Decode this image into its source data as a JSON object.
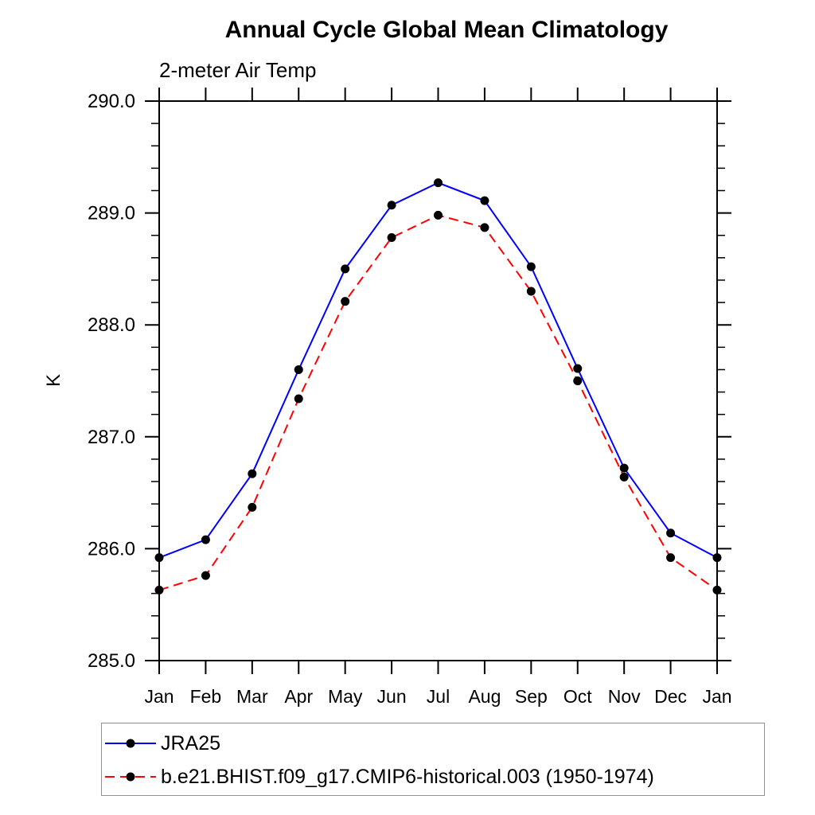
{
  "chart_data": {
    "type": "line",
    "title": "Annual Cycle Global Mean Climatology",
    "subtitle": "2-meter Air Temp",
    "ylabel": "K",
    "categories": [
      "Jan",
      "Feb",
      "Mar",
      "Apr",
      "May",
      "Jun",
      "Jul",
      "Aug",
      "Sep",
      "Oct",
      "Nov",
      "Dec",
      "Jan"
    ],
    "ylim": [
      285.0,
      290.0
    ],
    "ytick_major_interval": 1.0,
    "ytick_minor_interval": 0.2,
    "ytick_labels": [
      "285.0",
      "286.0",
      "287.0",
      "288.0",
      "289.0",
      "290.0"
    ],
    "grid": false,
    "legend_position": "bottom-left",
    "axis_color": "#000000",
    "marker": {
      "shape": "circle",
      "color": "#000000"
    },
    "series": [
      {
        "name": "JRA25",
        "color": "#0000ff",
        "line_style": "solid",
        "values": [
          285.92,
          286.08,
          286.67,
          287.6,
          288.5,
          289.07,
          289.27,
          289.11,
          288.52,
          287.61,
          286.72,
          286.14,
          285.92
        ]
      },
      {
        "name": "b.e21.BHIST.f09_g17.CMIP6-historical.003 (1950-1974)",
        "color": "#ff0000",
        "line_style": "dashed",
        "values": [
          285.63,
          285.76,
          286.37,
          287.34,
          288.21,
          288.78,
          288.98,
          288.87,
          288.3,
          287.5,
          286.64,
          285.92,
          285.63
        ]
      }
    ]
  }
}
